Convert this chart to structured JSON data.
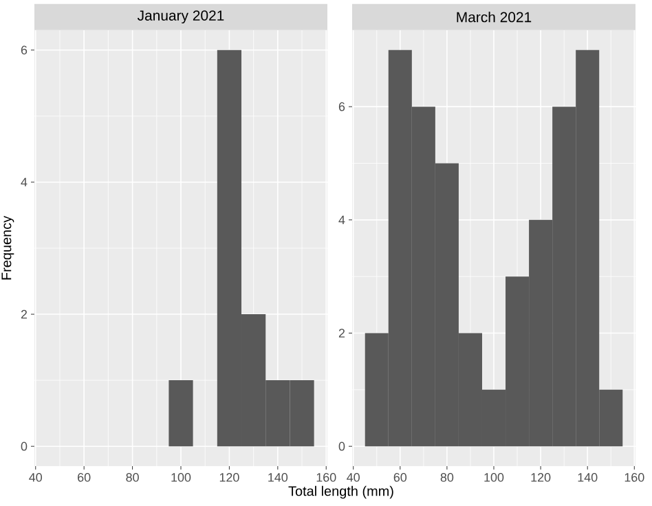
{
  "chart_data": [
    {
      "type": "histogram",
      "title": "January 2021",
      "ylabel": "Frequency",
      "xlabel": "Total length (mm)",
      "bins": [
        95,
        105,
        115,
        125,
        135,
        145,
        155
      ],
      "values": [
        1,
        0,
        6,
        2,
        1,
        1
      ],
      "color": "#595959",
      "xlim": [
        39.5,
        160.5
      ],
      "ylim": [
        -0.3,
        6.3
      ],
      "xticks": [
        40,
        60,
        80,
        100,
        120,
        140,
        160
      ],
      "yticks": [
        0,
        2,
        4,
        6
      ],
      "grid": true
    },
    {
      "type": "histogram",
      "title": "March 2021",
      "bins": [
        45,
        55,
        65,
        75,
        85,
        95,
        105,
        115,
        125,
        135,
        145,
        155
      ],
      "values": [
        2,
        7,
        6,
        5,
        2,
        1,
        3,
        4,
        6,
        7,
        1
      ],
      "color": "#595959",
      "xlim": [
        39.5,
        160.5
      ],
      "ylim": [
        -0.35,
        7.35
      ],
      "xticks": [
        40,
        60,
        80,
        100,
        120,
        140,
        160
      ],
      "yticks": [
        0,
        2,
        4,
        6
      ],
      "grid": true
    }
  ]
}
